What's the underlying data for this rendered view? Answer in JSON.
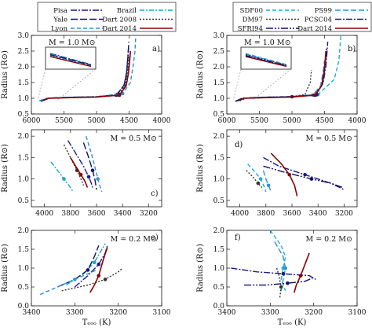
{
  "chart_data": {
    "type": "line",
    "legends": [
      {
        "entries": [
          {
            "name": "Pisa",
            "color": "#1a1a8c",
            "dash": "8,2,2,2"
          },
          {
            "name": "Brazil",
            "color": "#18a7c9",
            "dash": "6,2,2,2"
          },
          {
            "name": "Yale",
            "color": "#101070",
            "dash": "9,3"
          },
          {
            "name": "Dart 2008",
            "color": "#333333",
            "dash": "2,2"
          },
          {
            "name": "Lyon",
            "color": "#2f8fd8",
            "dash": "5,3"
          },
          {
            "name": "Dart 2014",
            "color": "#8b0000",
            "dash": ""
          }
        ]
      },
      {
        "entries": [
          {
            "name": "SDF00",
            "color": "#1bb0d0",
            "dash": "5,3"
          },
          {
            "name": "PS99",
            "color": "#2f8fd8",
            "dash": "7,3"
          },
          {
            "name": "DM97",
            "color": "#333333",
            "dash": "2,2"
          },
          {
            "name": "PCSC04",
            "color": "#1a1a8c",
            "dash": "8,2,2,2"
          },
          {
            "name": "SFRI94",
            "color": "#101070",
            "dash": "9,2,2,2,2,2"
          },
          {
            "name": "Dart 2014",
            "color": "#8b0000",
            "dash": ""
          }
        ]
      }
    ],
    "panels": [
      {
        "id": "a",
        "letter": "a)",
        "mass_label": "M = 1.0 M⊙",
        "xlim": [
          6000,
          4000
        ],
        "ylim": [
          0.5,
          3.0
        ],
        "xticks": [
          6000,
          5500,
          5000,
          4500,
          4000
        ],
        "yticks": [
          0.5,
          1.0,
          1.5,
          2.0,
          2.5,
          3.0
        ],
        "xlabel": "",
        "ylabel": "Radius (R⊙)",
        "inset": true,
        "series": [
          {
            "name": "Pisa",
            "x": [
              5850,
              5750,
              5500,
              5000,
              4700,
              4580,
              4540,
              4520,
              4510
            ],
            "y": [
              0.9,
              1.0,
              1.03,
              1.05,
              1.1,
              1.4,
              1.8,
              2.3,
              2.6
            ]
          },
          {
            "name": "Brazil",
            "x": [
              5820,
              5730,
              5450,
              5000,
              4650,
              4560,
              4520,
              4500,
              4490
            ],
            "y": [
              0.92,
              1.0,
              1.02,
              1.04,
              1.1,
              1.4,
              1.8,
              2.2,
              2.4
            ]
          },
          {
            "name": "Yale",
            "x": [
              5860,
              5760,
              5450,
              5000,
              4680,
              4570,
              4535,
              4515,
              4505
            ],
            "y": [
              0.91,
              1.0,
              1.03,
              1.05,
              1.12,
              1.45,
              1.9,
              2.4,
              2.8
            ]
          },
          {
            "name": "Dart 2008",
            "x": [
              5840,
              5745,
              5470,
              5000,
              4660,
              4565,
              4525,
              4505
            ],
            "y": [
              0.93,
              1.0,
              1.02,
              1.04,
              1.1,
              1.4,
              1.85,
              2.3
            ]
          },
          {
            "name": "Lyon",
            "x": [
              5880,
              5770,
              5500,
              5000,
              4600,
              4480,
              4440,
              4410,
              4400
            ],
            "y": [
              0.92,
              1.0,
              1.03,
              1.05,
              1.15,
              1.5,
              2.0,
              2.5,
              2.9
            ]
          },
          {
            "name": "Dart 2014",
            "x": [
              5820,
              5735,
              5400,
              5000,
              4650,
              4545,
              4510,
              4490,
              4480
            ],
            "y": [
              0.93,
              1.0,
              1.02,
              1.04,
              1.1,
              1.4,
              1.8,
              2.2,
              2.5
            ]
          }
        ]
      },
      {
        "id": "b",
        "letter": "b)",
        "mass_label": "M = 1.0 M⊙",
        "xlim": [
          6000,
          4000
        ],
        "ylim": [
          0.5,
          3.0
        ],
        "xticks": [
          6000,
          5500,
          5000,
          4500,
          4000
        ],
        "yticks": [
          0.5,
          1.0,
          1.5,
          2.0,
          2.5,
          3.0
        ],
        "xlabel": "",
        "ylabel": "Radius (R⊙)",
        "inset": true,
        "series": [
          {
            "name": "SDF00",
            "x": [
              5850,
              5760,
              5500,
              5000,
              4600,
              4350,
              4280,
              4260,
              4250
            ],
            "y": [
              0.9,
              1.0,
              1.03,
              1.06,
              1.12,
              1.6,
              2.2,
              2.7,
              3.0
            ]
          },
          {
            "name": "PS99",
            "x": [
              5830,
              5750,
              5450,
              5000,
              4680,
              4560,
              4520,
              4500
            ],
            "y": [
              0.91,
              1.0,
              1.03,
              1.05,
              1.1,
              1.4,
              1.85,
              2.2
            ]
          },
          {
            "name": "DM97",
            "x": [
              5800,
              5700,
              5400,
              5000,
              4800,
              4720,
              4700
            ],
            "y": [
              0.92,
              1.0,
              1.02,
              1.05,
              1.12,
              1.5,
              1.9
            ]
          },
          {
            "name": "PCSC04",
            "x": [
              5860,
              5760,
              5450,
              5000,
              4620,
              4520,
              4480,
              4460,
              4450
            ],
            "y": [
              0.91,
              1.0,
              1.03,
              1.05,
              1.12,
              1.5,
              2.0,
              2.5,
              2.8
            ]
          },
          {
            "name": "SFRI94",
            "x": [
              5870,
              5770,
              5500,
              5000,
              4640,
              4530,
              4500,
              4480,
              4470
            ],
            "y": [
              0.9,
              1.0,
              1.03,
              1.05,
              1.1,
              1.45,
              1.9,
              2.3,
              2.6
            ]
          },
          {
            "name": "Dart 2014",
            "x": [
              5820,
              5735,
              5400,
              5000,
              4650,
              4545,
              4510,
              4490,
              4480
            ],
            "y": [
              0.93,
              1.0,
              1.02,
              1.04,
              1.1,
              1.4,
              1.8,
              2.2,
              2.5
            ]
          }
        ]
      },
      {
        "id": "c",
        "letter": "c)",
        "mass_label": "M = 0.5 M⊙",
        "xlim": [
          4100,
          3100
        ],
        "ylim": [
          0.35,
          2.15
        ],
        "xticks": [
          4000,
          3800,
          3600,
          3400,
          3200
        ],
        "yticks": [
          0.5,
          1.0,
          1.5,
          2.0
        ],
        "xlabel": "",
        "ylabel": "Radius (R⊙)",
        "inset": false,
        "series": [
          {
            "name": "Pisa",
            "x": [
              3820,
              3760,
              3700,
              3660,
              3640,
              3630
            ],
            "y": [
              1.9,
              1.6,
              1.3,
              1.05,
              0.9,
              0.8
            ]
          },
          {
            "name": "Brazil",
            "x": [
              3950,
              3900,
              3850,
              3800,
              3780
            ],
            "y": [
              1.4,
              1.2,
              1.0,
              0.8,
              0.7
            ]
          },
          {
            "name": "Yale",
            "x": [
              3700,
              3660,
              3630,
              3610,
              3600
            ],
            "y": [
              1.85,
              1.5,
              1.2,
              0.95,
              0.75
            ]
          },
          {
            "name": "Dart 2008",
            "x": [
              3850,
              3800,
              3750,
              3720,
              3700
            ],
            "y": [
              1.8,
              1.5,
              1.2,
              1.0,
              0.85
            ]
          },
          {
            "name": "Lyon",
            "x": [
              3680,
              3640,
              3610,
              3590,
              3570,
              3560
            ],
            "y": [
              2.0,
              1.6,
              1.25,
              1.0,
              0.8,
              0.7
            ]
          },
          {
            "name": "Dart 2014",
            "x": [
              3800,
              3760,
              3720,
              3690,
              3670
            ],
            "y": [
              1.5,
              1.3,
              1.1,
              0.95,
              0.8
            ]
          }
        ]
      },
      {
        "id": "d",
        "letter": "d)",
        "mass_label": "M = 0.5 M⊙",
        "xlim": [
          4100,
          3100
        ],
        "ylim": [
          0.35,
          2.15
        ],
        "xticks": [
          4000,
          3800,
          3600,
          3400,
          3200
        ],
        "yticks": [
          0.5,
          1.0,
          1.5,
          2.0
        ],
        "xlabel": "",
        "ylabel": "Radius (R⊙)",
        "inset": false,
        "series": [
          {
            "name": "SDF00",
            "x": [
              3940,
              3880,
              3840,
              3810,
              3800
            ],
            "y": [
              1.35,
              1.15,
              1.0,
              0.8,
              0.7
            ]
          },
          {
            "name": "PS99",
            "x": [
              3820,
              3800,
              3780,
              3760
            ],
            "y": [
              1.2,
              1.0,
              0.85,
              0.7
            ]
          },
          {
            "name": "DM97",
            "x": [
              3950,
              3900,
              3860,
              3830
            ],
            "y": [
              1.2,
              1.05,
              0.9,
              0.8
            ]
          },
          {
            "name": "PCSC04",
            "x": [
              3820,
              3700,
              3500,
              3300,
              3200
            ],
            "y": [
              1.5,
              1.3,
              1.1,
              0.9,
              0.75
            ]
          },
          {
            "name": "SFRI94",
            "x": [
              3820,
              3650,
              3450,
              3300,
              3210
            ],
            "y": [
              1.3,
              1.15,
              1.0,
              0.9,
              0.8
            ]
          },
          {
            "name": "Dart 2014",
            "x": [
              3760,
              3680,
              3620,
              3580,
              3560
            ],
            "y": [
              1.6,
              1.35,
              1.1,
              0.85,
              0.6
            ]
          }
        ]
      },
      {
        "id": "e",
        "letter": "e)",
        "mass_label": "M = 0.2 M⊙",
        "xlim": [
          3400,
          3100
        ],
        "ylim": [
          0.0,
          2.0
        ],
        "xticks": [
          3400,
          3300,
          3200,
          3100
        ],
        "yticks": [
          0.0,
          0.5,
          1.0,
          1.5,
          2.0
        ],
        "xlabel": "Tₑₒₒ (K)",
        "ylabel": "Radius (R⊙)",
        "inset": false,
        "series": [
          {
            "name": "Pisa",
            "x": [
              3300,
              3270,
              3245,
              3230,
              3225
            ],
            "y": [
              0.5,
              0.8,
              1.1,
              1.4,
              1.6
            ]
          },
          {
            "name": "Brazil",
            "x": [
              3320,
              3280,
              3255,
              3240,
              3230
            ],
            "y": [
              0.55,
              0.85,
              1.15,
              1.45,
              1.65
            ]
          },
          {
            "name": "Yale",
            "x": [
              3340,
              3300,
              3270,
              3255,
              3245
            ],
            "y": [
              0.5,
              0.7,
              0.95,
              1.3,
              1.6
            ]
          },
          {
            "name": "Dart 2008",
            "x": [
              3330,
              3270,
              3230,
              3200,
              3190
            ],
            "y": [
              0.4,
              0.55,
              0.7,
              0.9,
              1.0
            ]
          },
          {
            "name": "Lyon",
            "x": [
              3380,
              3340,
              3300,
              3270,
              3250
            ],
            "y": [
              0.3,
              0.5,
              0.7,
              0.85,
              0.95
            ]
          },
          {
            "name": "Dart 2014",
            "x": [
              3265,
              3255,
              3245,
              3235,
              3225
            ],
            "y": [
              0.35,
              0.55,
              0.8,
              1.2,
              1.55
            ]
          }
        ]
      },
      {
        "id": "f",
        "letter": "f)",
        "mass_label": "M = 0.2 M⊙",
        "xlim": [
          3400,
          3100
        ],
        "ylim": [
          0.0,
          2.0
        ],
        "xticks": [
          3400,
          3300,
          3200,
          3100
        ],
        "yticks": [
          0.0,
          0.5,
          1.0,
          1.5,
          2.0
        ],
        "xlabel": "Tₑₒₒ (K)",
        "ylabel": "Radius (R⊙)",
        "inset": false,
        "series": [
          {
            "name": "SDF00",
            "x": [
              3300,
              3275,
              3265,
              3270,
              3275,
              3265
            ],
            "y": [
              2.0,
              1.6,
              1.3,
              1.0,
              0.7,
              0.4
            ]
          },
          {
            "name": "PS99",
            "x": [
              3290,
              3270,
              3265,
              3270,
              3275
            ],
            "y": [
              1.7,
              1.3,
              1.0,
              0.7,
              0.4
            ]
          },
          {
            "name": "DM97",
            "x": [
              3285,
              3280,
              3275,
              3278
            ],
            "y": [
              1.0,
              0.8,
              0.5,
              0.2
            ]
          },
          {
            "name": "PCSC04",
            "x": [
              3390,
              3330,
              3270,
              3210,
              3195
            ],
            "y": [
              1.0,
              0.9,
              0.85,
              0.8,
              0.7
            ]
          },
          {
            "name": "SFRI94",
            "x": [
              3360,
              3310,
              3260,
              3220,
              3200
            ],
            "y": [
              0.55,
              0.55,
              0.6,
              0.65,
              0.75
            ]
          },
          {
            "name": "Dart 2014",
            "x": [
              3245,
              3240,
              3230,
              3220,
              3210
            ],
            "y": [
              0.35,
              0.55,
              0.8,
              1.1,
              1.4
            ]
          }
        ]
      }
    ]
  }
}
